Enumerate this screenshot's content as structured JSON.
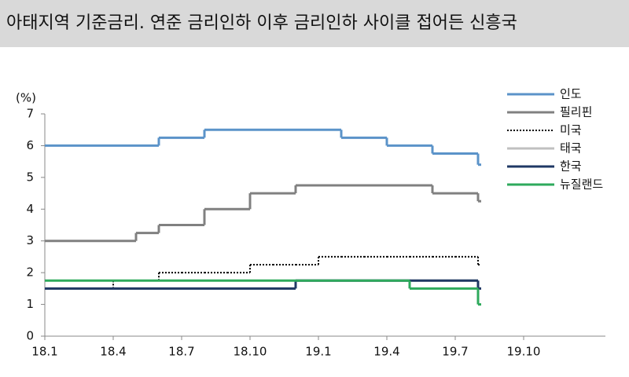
{
  "chart_data": {
    "type": "step-line",
    "title": "아태지역 기준금리. 연준 금리인하 이후 금리인하 사이클 접어든 신흥국",
    "y_unit": "(%)",
    "x": [
      "18.1",
      "18.2",
      "18.3",
      "18.4",
      "18.5",
      "18.6",
      "18.7",
      "18.8",
      "18.9",
      "18.10",
      "18.11",
      "18.12",
      "19.1",
      "19.2",
      "19.3",
      "19.4",
      "19.5",
      "19.6",
      "19.7",
      "19.8",
      "19.9",
      "19.10",
      "19.11",
      "19.12",
      "20.1"
    ],
    "xticks": [
      "18.1",
      "18.4",
      "18.7",
      "18.10",
      "19.1",
      "19.4",
      "19.7",
      "19.10"
    ],
    "ylim": [
      0,
      7
    ],
    "yticks": [
      0,
      1,
      2,
      3,
      4,
      5,
      6,
      7
    ],
    "series": [
      {
        "name": "인도",
        "color": "#5b93c9",
        "dash": false,
        "values": [
          6,
          6,
          6,
          6,
          6,
          6.25,
          6.25,
          6.5,
          6.5,
          6.5,
          6.5,
          6.5,
          6.5,
          6.25,
          6.25,
          6,
          6,
          5.75,
          5.75,
          5.4,
          null,
          null,
          null,
          null,
          null
        ]
      },
      {
        "name": "필리핀",
        "color": "#808080",
        "dash": false,
        "values": [
          3,
          3,
          3,
          3,
          3.25,
          3.5,
          3.5,
          4,
          4,
          4.5,
          4.5,
          4.75,
          4.75,
          4.75,
          4.75,
          4.75,
          4.75,
          4.5,
          4.5,
          4.25,
          null,
          null,
          null,
          null,
          null
        ]
      },
      {
        "name": "미국",
        "color": "#000000",
        "dash": true,
        "values": [
          1.5,
          1.5,
          1.5,
          1.75,
          1.75,
          2,
          2,
          2,
          2,
          2.25,
          2.25,
          2.25,
          2.5,
          2.5,
          2.5,
          2.5,
          2.5,
          2.5,
          2.5,
          2.25,
          null,
          null,
          null,
          null,
          null
        ]
      },
      {
        "name": "태국",
        "color": "#c0c0c0",
        "dash": false,
        "values": [
          1.5,
          1.5,
          1.5,
          1.5,
          1.5,
          1.5,
          1.5,
          1.5,
          1.5,
          1.5,
          1.5,
          1.75,
          1.75,
          1.75,
          1.75,
          1.75,
          1.75,
          1.75,
          1.75,
          1.5,
          null,
          null,
          null,
          null,
          null
        ]
      },
      {
        "name": "한국",
        "color": "#1f3864",
        "dash": false,
        "values": [
          1.5,
          1.5,
          1.5,
          1.5,
          1.5,
          1.5,
          1.5,
          1.5,
          1.5,
          1.5,
          1.5,
          1.75,
          1.75,
          1.75,
          1.75,
          1.75,
          1.75,
          1.75,
          1.75,
          1.5,
          null,
          null,
          null,
          null,
          null
        ]
      },
      {
        "name": "뉴질랜드",
        "color": "#2eaa5c",
        "dash": false,
        "values": [
          1.75,
          1.75,
          1.75,
          1.75,
          1.75,
          1.75,
          1.75,
          1.75,
          1.75,
          1.75,
          1.75,
          1.75,
          1.75,
          1.75,
          1.75,
          1.75,
          1.5,
          1.5,
          1.5,
          1,
          null,
          null,
          null,
          null,
          null
        ]
      }
    ]
  }
}
